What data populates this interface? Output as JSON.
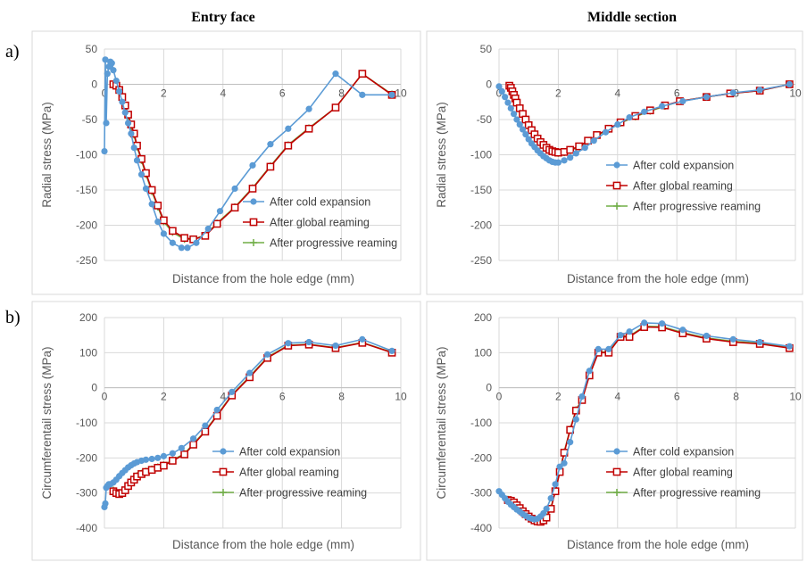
{
  "figure": {
    "col_titles": [
      "Entry face",
      "Middle section"
    ],
    "row_labels": [
      "a)",
      "b)"
    ]
  },
  "colors": {
    "cold": "#5B9BD5",
    "global": "#C00000",
    "progressive": "#70AD47"
  },
  "chart_data": [
    {
      "id": "a-entry",
      "type": "line",
      "title": "",
      "xlabel": "Distance from the hole edge (mm)",
      "ylabel": "Radial stress (MPa)",
      "xlim": [
        0,
        10
      ],
      "ylim": [
        -250,
        50
      ],
      "xticks": [
        0,
        2,
        4,
        6,
        8,
        10
      ],
      "yticks": [
        -250,
        -200,
        -150,
        -100,
        -50,
        0,
        50
      ],
      "grid": true,
      "legend": "bottom-right",
      "series": [
        {
          "name": "After cold expansion",
          "key": "cold",
          "marker": "circle",
          "x": [
            0,
            0.03,
            0.06,
            0.1,
            0.15,
            0.2,
            0.25,
            0.3,
            0.4,
            0.5,
            0.6,
            0.7,
            0.8,
            0.9,
            1.0,
            1.1,
            1.25,
            1.4,
            1.6,
            1.8,
            2.0,
            2.3,
            2.6,
            2.8,
            3.1,
            3.5,
            3.9,
            4.4,
            5.0,
            5.6,
            6.2,
            6.9,
            7.8,
            8.7,
            9.7
          ],
          "y": [
            -95,
            35,
            -55,
            15,
            25,
            32,
            30,
            20,
            5,
            -10,
            -25,
            -40,
            -55,
            -70,
            -90,
            -108,
            -128,
            -148,
            -170,
            -195,
            -212,
            -225,
            -232,
            -232,
            -225,
            -205,
            -180,
            -148,
            -115,
            -85,
            -63,
            -35,
            15,
            -15,
            -15
          ]
        },
        {
          "name": "After global reaming",
          "key": "global",
          "marker": "square",
          "x": [
            0.3,
            0.4,
            0.5,
            0.6,
            0.7,
            0.8,
            0.9,
            1.0,
            1.1,
            1.25,
            1.4,
            1.6,
            1.8,
            2.0,
            2.3,
            2.7,
            3.0,
            3.4,
            3.8,
            4.4,
            5.0,
            5.6,
            6.2,
            6.9,
            7.8,
            8.7,
            9.7
          ],
          "y": [
            0,
            -2,
            -8,
            -18,
            -30,
            -43,
            -57,
            -70,
            -87,
            -106,
            -126,
            -150,
            -172,
            -193,
            -208,
            -218,
            -220,
            -215,
            -198,
            -175,
            -148,
            -117,
            -87,
            -63,
            -33,
            15,
            -15
          ]
        },
        {
          "name": "After progressive reaming",
          "key": "progressive",
          "marker": "plus",
          "x": [
            0.3,
            0.4,
            0.5,
            0.6,
            0.7,
            0.8,
            0.9,
            1.0,
            1.1,
            1.25,
            1.4,
            1.6,
            1.8,
            2.0,
            2.3,
            2.7,
            3.0,
            3.4,
            3.8,
            4.4,
            5.0,
            5.6,
            6.2,
            6.9,
            7.8,
            8.7,
            9.7
          ],
          "y": [
            0,
            -3,
            -10,
            -20,
            -32,
            -45,
            -59,
            -72,
            -89,
            -108,
            -128,
            -152,
            -174,
            -195,
            -210,
            -220,
            -220,
            -214,
            -197,
            -174,
            -147,
            -116,
            -86,
            -62,
            -33,
            15,
            -14
          ]
        }
      ]
    },
    {
      "id": "a-middle",
      "type": "line",
      "title": "",
      "xlabel": "Distance from the hole edge (mm)",
      "ylabel": "Radial stress (MPa)",
      "xlim": [
        0,
        10
      ],
      "ylim": [
        -250,
        50
      ],
      "xticks": [
        0,
        2,
        4,
        6,
        8,
        10
      ],
      "yticks": [
        -250,
        -200,
        -150,
        -100,
        -50,
        0,
        50
      ],
      "grid": true,
      "legend": "lower-right",
      "series": [
        {
          "name": "After cold expansion",
          "key": "cold",
          "marker": "circle",
          "x": [
            0,
            0.1,
            0.2,
            0.3,
            0.4,
            0.5,
            0.6,
            0.7,
            0.8,
            0.9,
            1.0,
            1.1,
            1.2,
            1.3,
            1.4,
            1.5,
            1.6,
            1.7,
            1.8,
            1.9,
            2.0,
            2.2,
            2.4,
            2.6,
            2.9,
            3.2,
            3.6,
            4.0,
            4.4,
            4.9,
            5.5,
            6.2,
            7.0,
            7.9,
            8.8,
            9.8
          ],
          "y": [
            -3,
            -10,
            -18,
            -26,
            -34,
            -42,
            -50,
            -57,
            -64,
            -71,
            -78,
            -84,
            -89,
            -94,
            -98,
            -102,
            -105,
            -108,
            -110,
            -111,
            -111,
            -108,
            -104,
            -98,
            -90,
            -80,
            -68,
            -57,
            -47,
            -39,
            -31,
            -24,
            -18,
            -12,
            -8,
            0
          ]
        },
        {
          "name": "After global reaming",
          "key": "global",
          "marker": "square",
          "x": [
            0.35,
            0.4,
            0.45,
            0.5,
            0.55,
            0.6,
            0.7,
            0.8,
            0.9,
            1.0,
            1.1,
            1.2,
            1.3,
            1.4,
            1.5,
            1.6,
            1.7,
            1.8,
            1.9,
            2.0,
            2.2,
            2.4,
            2.7,
            3.0,
            3.3,
            3.7,
            4.1,
            4.6,
            5.1,
            5.6,
            6.1,
            7.0,
            7.8,
            8.8,
            9.8
          ],
          "y": [
            -2,
            -5,
            -10,
            -15,
            -20,
            -26,
            -34,
            -42,
            -50,
            -58,
            -65,
            -71,
            -77,
            -82,
            -86,
            -90,
            -93,
            -95,
            -96,
            -97,
            -96,
            -93,
            -88,
            -80,
            -72,
            -63,
            -54,
            -45,
            -37,
            -30,
            -24,
            -18,
            -13,
            -9,
            0
          ]
        },
        {
          "name": "After progressive reaming",
          "key": "progressive",
          "marker": "plus",
          "x": [
            0.35,
            0.4,
            0.45,
            0.5,
            0.55,
            0.6,
            0.7,
            0.8,
            0.9,
            1.0,
            1.1,
            1.2,
            1.3,
            1.4,
            1.5,
            1.6,
            1.7,
            1.8,
            1.9,
            2.0,
            2.2,
            2.4,
            2.7,
            3.0,
            3.3,
            3.7,
            4.1,
            4.6,
            5.1,
            5.6,
            6.1,
            7.0,
            7.8,
            8.8,
            9.8
          ],
          "y": [
            -2,
            -6,
            -11,
            -16,
            -21,
            -27,
            -35,
            -43,
            -51,
            -59,
            -66,
            -72,
            -78,
            -83,
            -87,
            -91,
            -94,
            -96,
            -97,
            -98,
            -97,
            -94,
            -89,
            -81,
            -73,
            -64,
            -55,
            -46,
            -38,
            -31,
            -24,
            -18,
            -13,
            -9,
            0
          ]
        }
      ]
    },
    {
      "id": "b-entry",
      "type": "line",
      "title": "",
      "xlabel": "Distance from the hole edge (mm)",
      "ylabel": "Circumferentail stress (MPa)",
      "xlim": [
        0,
        10
      ],
      "ylim": [
        -400,
        200
      ],
      "xticks": [
        0,
        2,
        4,
        6,
        8,
        10
      ],
      "yticks": [
        -400,
        -300,
        -200,
        -100,
        0,
        100,
        200
      ],
      "grid": true,
      "legend": "lower-right",
      "series": [
        {
          "name": "After cold expansion",
          "key": "cold",
          "marker": "circle",
          "x": [
            0,
            0.03,
            0.06,
            0.1,
            0.15,
            0.2,
            0.3,
            0.4,
            0.5,
            0.6,
            0.7,
            0.8,
            0.9,
            1.0,
            1.1,
            1.25,
            1.4,
            1.6,
            1.8,
            2.0,
            2.3,
            2.6,
            3.0,
            3.4,
            3.8,
            4.3,
            4.9,
            5.5,
            6.2,
            6.9,
            7.8,
            8.7,
            9.7
          ],
          "y": [
            -340,
            -330,
            -285,
            -280,
            -275,
            -275,
            -270,
            -262,
            -252,
            -243,
            -235,
            -227,
            -221,
            -216,
            -212,
            -208,
            -205,
            -203,
            -200,
            -195,
            -187,
            -172,
            -145,
            -108,
            -63,
            -12,
            42,
            95,
            127,
            130,
            120,
            138,
            105
          ]
        },
        {
          "name": "After global reaming",
          "key": "global",
          "marker": "square",
          "x": [
            0.3,
            0.4,
            0.5,
            0.6,
            0.7,
            0.8,
            0.9,
            1.0,
            1.1,
            1.25,
            1.4,
            1.6,
            1.8,
            2.0,
            2.3,
            2.7,
            3.0,
            3.4,
            3.8,
            4.3,
            4.9,
            5.5,
            6.2,
            6.9,
            7.8,
            8.7,
            9.7
          ],
          "y": [
            -295,
            -300,
            -303,
            -300,
            -292,
            -280,
            -270,
            -262,
            -253,
            -246,
            -240,
            -234,
            -228,
            -222,
            -208,
            -190,
            -162,
            -125,
            -80,
            -22,
            30,
            85,
            120,
            123,
            113,
            128,
            100
          ]
        },
        {
          "name": "After progressive reaming",
          "key": "progressive",
          "marker": "plus",
          "x": [
            0.3,
            0.4,
            0.5,
            0.6,
            0.7,
            0.8,
            0.9,
            1.0,
            1.1,
            1.25,
            1.4,
            1.6,
            1.8,
            2.0,
            2.3,
            2.7,
            3.0,
            3.4,
            3.8,
            4.3,
            4.9,
            5.5,
            6.2,
            6.9,
            7.8,
            8.7,
            9.7
          ],
          "y": [
            -292,
            -297,
            -300,
            -297,
            -290,
            -278,
            -268,
            -260,
            -251,
            -244,
            -238,
            -232,
            -226,
            -220,
            -206,
            -188,
            -160,
            -123,
            -78,
            -20,
            32,
            87,
            121,
            124,
            114,
            129,
            101
          ]
        }
      ]
    },
    {
      "id": "b-middle",
      "type": "line",
      "title": "",
      "xlabel": "Distance from the hole edge (mm)",
      "ylabel": "Circumferentail stress (MPa)",
      "xlim": [
        0,
        10
      ],
      "ylim": [
        -400,
        200
      ],
      "xticks": [
        0,
        2,
        4,
        6,
        8,
        10
      ],
      "yticks": [
        -400,
        -300,
        -200,
        -100,
        0,
        100,
        200
      ],
      "grid": true,
      "legend": "lower-right",
      "series": [
        {
          "name": "After cold expansion",
          "key": "cold",
          "marker": "circle",
          "x": [
            0,
            0.1,
            0.2,
            0.3,
            0.4,
            0.5,
            0.6,
            0.7,
            0.8,
            0.9,
            1.0,
            1.1,
            1.2,
            1.3,
            1.4,
            1.5,
            1.6,
            1.75,
            1.9,
            2.05,
            2.2,
            2.4,
            2.6,
            2.8,
            3.05,
            3.35,
            3.7,
            4.1,
            4.4,
            4.9,
            5.5,
            6.2,
            7.0,
            7.9,
            8.8,
            9.8
          ],
          "y": [
            -295,
            -305,
            -315,
            -325,
            -333,
            -340,
            -347,
            -353,
            -360,
            -365,
            -370,
            -373,
            -375,
            -373,
            -367,
            -358,
            -345,
            -315,
            -275,
            -225,
            -215,
            -155,
            -90,
            -25,
            48,
            110,
            110,
            150,
            160,
            185,
            183,
            165,
            148,
            138,
            130,
            118
          ]
        },
        {
          "name": "After global reaming",
          "key": "global",
          "marker": "square",
          "x": [
            0.3,
            0.4,
            0.5,
            0.6,
            0.7,
            0.8,
            0.9,
            1.0,
            1.1,
            1.2,
            1.3,
            1.4,
            1.5,
            1.6,
            1.75,
            1.9,
            2.05,
            2.2,
            2.4,
            2.6,
            2.8,
            3.05,
            3.35,
            3.7,
            4.1,
            4.4,
            4.9,
            5.5,
            6.2,
            7.0,
            7.9,
            8.8,
            9.8
          ],
          "y": [
            -320,
            -322,
            -327,
            -335,
            -343,
            -352,
            -360,
            -367,
            -373,
            -378,
            -381,
            -382,
            -378,
            -370,
            -345,
            -295,
            -240,
            -185,
            -120,
            -65,
            -35,
            35,
            100,
            100,
            145,
            145,
            173,
            172,
            155,
            140,
            130,
            125,
            113
          ]
        },
        {
          "name": "After progressive reaming",
          "key": "progressive",
          "marker": "plus",
          "x": [
            0.3,
            0.4,
            0.5,
            0.6,
            0.7,
            0.8,
            0.9,
            1.0,
            1.1,
            1.2,
            1.3,
            1.4,
            1.5,
            1.6,
            1.75,
            1.9,
            2.05,
            2.2,
            2.4,
            2.6,
            2.8,
            3.05,
            3.35,
            3.7,
            4.1,
            4.4,
            4.9,
            5.5,
            6.2,
            7.0,
            7.9,
            8.8,
            9.8
          ],
          "y": [
            -318,
            -320,
            -325,
            -333,
            -341,
            -350,
            -358,
            -365,
            -371,
            -376,
            -379,
            -380,
            -376,
            -368,
            -343,
            -293,
            -238,
            -183,
            -118,
            -63,
            -33,
            37,
            102,
            102,
            147,
            147,
            175,
            174,
            157,
            142,
            132,
            127,
            115
          ]
        }
      ]
    }
  ]
}
